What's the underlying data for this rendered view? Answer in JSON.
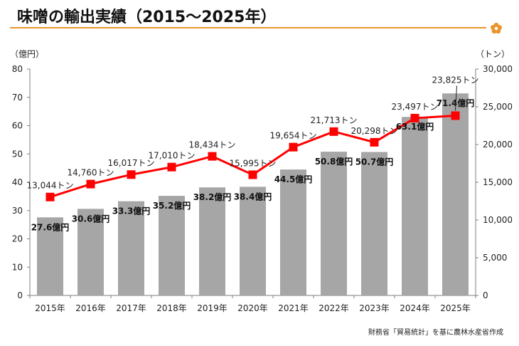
{
  "title": "味噌の輸出実績（2015～2025年）",
  "source": "財務省「貿易統計」を基に農林水産省作成",
  "chart_data": {
    "type": "bar",
    "categories": [
      "2015年",
      "2016年",
      "2017年",
      "2018年",
      "2019年",
      "2020年",
      "2021年",
      "2022年",
      "2023年",
      "2024年",
      "2025年"
    ],
    "series": [
      {
        "values": [
          27.6,
          30.6,
          33.3,
          35.2,
          38.2,
          38.4,
          44.5,
          50.8,
          50.7,
          63.1,
          71.4
        ],
        "labels": [
          "27.6億円",
          "30.6億円",
          "33.3億円",
          "35.2億円",
          "38.2億円",
          "38.4億円",
          "44.5億円",
          "50.8億円",
          "50.7億円",
          "63.1億円",
          "71.4億円"
        ],
        "axis": "left",
        "color": "#a6a6a6"
      },
      {
        "type": "line",
        "values": [
          13044,
          14760,
          16017,
          17010,
          18434,
          15995,
          19654,
          21713,
          20298,
          23497,
          23825
        ],
        "labels": [
          "13,044トン",
          "14,760トン",
          "16,017トン",
          "17,010トン",
          "18,434トン",
          "15,995トン",
          "19,654トン",
          "21,713トン",
          "20,298トン",
          "23,497トン",
          "23,825トン"
        ],
        "axis": "right",
        "color": "#ff0000"
      }
    ],
    "y_left": {
      "unit": "（億円）",
      "range": [
        0,
        80
      ],
      "ticks": [
        "0",
        "10",
        "20",
        "30",
        "40",
        "50",
        "60",
        "70",
        "80"
      ]
    },
    "y_right": {
      "unit": "（トン）",
      "range": [
        0,
        30000
      ],
      "ticks": [
        "0",
        "5,000",
        "10,000",
        "15,000",
        "20,000",
        "25,000",
        "30,000"
      ]
    },
    "grid": false,
    "legend": "none"
  }
}
